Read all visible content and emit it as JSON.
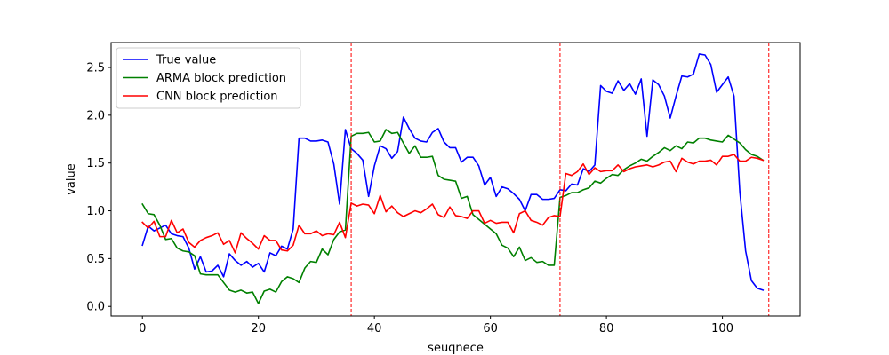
{
  "chart_data": {
    "type": "line",
    "title": "",
    "xlabel": "seuqnece",
    "ylabel": "value",
    "xlim": [
      -5.4,
      113.4
    ],
    "ylim": [
      -0.1,
      2.76
    ],
    "x_ticks": [
      0,
      20,
      40,
      60,
      80,
      100
    ],
    "y_ticks": [
      0.0,
      0.5,
      1.0,
      1.5,
      2.0,
      2.5
    ],
    "x_tick_labels": [
      "0",
      "20",
      "40",
      "60",
      "80",
      "100"
    ],
    "y_tick_labels": [
      "0.0",
      "0.5",
      "1.0",
      "1.5",
      "2.0",
      "2.5"
    ],
    "grid": false,
    "legend_position": "upper-left",
    "vlines": {
      "x": [
        36,
        72,
        108
      ],
      "color": "#ff0000",
      "style": "dashed"
    },
    "x": [
      0,
      1,
      2,
      3,
      4,
      5,
      6,
      7,
      8,
      9,
      10,
      11,
      12,
      13,
      14,
      15,
      16,
      17,
      18,
      19,
      20,
      21,
      22,
      23,
      24,
      25,
      26,
      27,
      28,
      29,
      30,
      31,
      32,
      33,
      34,
      35,
      36,
      37,
      38,
      39,
      40,
      41,
      42,
      43,
      44,
      45,
      46,
      47,
      48,
      49,
      50,
      51,
      52,
      53,
      54,
      55,
      56,
      57,
      58,
      59,
      60,
      61,
      62,
      63,
      64,
      65,
      66,
      67,
      68,
      69,
      70,
      71,
      72,
      73,
      74,
      75,
      76,
      77,
      78,
      79,
      80,
      81,
      82,
      83,
      84,
      85,
      86,
      87,
      88,
      89,
      90,
      91,
      92,
      93,
      94,
      95,
      96,
      97,
      98,
      99,
      100,
      101,
      102,
      103,
      104,
      105,
      106,
      107,
      108
    ],
    "series": [
      {
        "name": "True value",
        "color": "#0000ff",
        "values": [
          0.64,
          0.84,
          0.79,
          0.82,
          0.85,
          0.76,
          0.74,
          0.73,
          0.61,
          0.39,
          0.52,
          0.36,
          0.37,
          0.43,
          0.31,
          0.55,
          0.48,
          0.43,
          0.47,
          0.41,
          0.45,
          0.36,
          0.56,
          0.53,
          0.63,
          0.6,
          0.81,
          1.76,
          1.76,
          1.73,
          1.73,
          1.74,
          1.72,
          1.49,
          1.07,
          1.85,
          1.65,
          1.6,
          1.53,
          1.15,
          1.47,
          1.68,
          1.65,
          1.55,
          1.62,
          1.98,
          1.86,
          1.76,
          1.73,
          1.72,
          1.82,
          1.86,
          1.72,
          1.66,
          1.66,
          1.51,
          1.56,
          1.56,
          1.47,
          1.27,
          1.35,
          1.15,
          1.25,
          1.23,
          1.18,
          1.12,
          1.0,
          1.17,
          1.17,
          1.12,
          1.12,
          1.13,
          1.22,
          1.21,
          1.28,
          1.27,
          1.44,
          1.41,
          1.48,
          2.31,
          2.25,
          2.23,
          2.36,
          2.26,
          2.33,
          2.22,
          2.38,
          1.78,
          2.37,
          2.32,
          2.2,
          1.97,
          2.2,
          2.41,
          2.4,
          2.43,
          2.64,
          2.63,
          2.53,
          2.24,
          2.32,
          2.4,
          2.2,
          1.2,
          0.58,
          0.27,
          0.19,
          0.17,
          null
        ]
      },
      {
        "name": "ARMA block prediction",
        "color": "#008000",
        "values": [
          1.07,
          0.97,
          0.96,
          0.85,
          0.7,
          0.71,
          0.61,
          0.58,
          0.57,
          0.53,
          0.34,
          0.33,
          0.33,
          0.33,
          0.25,
          0.17,
          0.15,
          0.17,
          0.14,
          0.15,
          0.03,
          0.16,
          0.18,
          0.15,
          0.26,
          0.31,
          0.29,
          0.25,
          0.4,
          0.47,
          0.46,
          0.6,
          0.54,
          0.7,
          0.78,
          0.8,
          1.78,
          1.81,
          1.81,
          1.82,
          1.72,
          1.73,
          1.85,
          1.81,
          1.82,
          1.71,
          1.6,
          1.68,
          1.56,
          1.56,
          1.57,
          1.37,
          1.33,
          1.32,
          1.31,
          1.13,
          1.15,
          0.96,
          0.91,
          0.86,
          0.81,
          0.76,
          0.64,
          0.61,
          0.52,
          0.62,
          0.48,
          0.51,
          0.46,
          0.47,
          0.43,
          0.43,
          1.14,
          1.16,
          1.19,
          1.19,
          1.22,
          1.24,
          1.31,
          1.29,
          1.34,
          1.38,
          1.37,
          1.43,
          1.47,
          1.5,
          1.54,
          1.52,
          1.57,
          1.61,
          1.66,
          1.63,
          1.68,
          1.65,
          1.72,
          1.71,
          1.76,
          1.76,
          1.74,
          1.73,
          1.72,
          1.79,
          1.75,
          1.71,
          1.64,
          1.59,
          1.57,
          1.53,
          null
        ]
      },
      {
        "name": "CNN block prediction",
        "color": "#ff0000",
        "values": [
          0.88,
          0.82,
          0.89,
          0.73,
          0.73,
          0.9,
          0.77,
          0.81,
          0.67,
          0.62,
          0.69,
          0.72,
          0.74,
          0.77,
          0.65,
          0.69,
          0.56,
          0.77,
          0.71,
          0.66,
          0.6,
          0.74,
          0.69,
          0.69,
          0.59,
          0.58,
          0.64,
          0.85,
          0.76,
          0.76,
          0.79,
          0.74,
          0.76,
          0.75,
          0.88,
          0.72,
          1.08,
          1.05,
          1.07,
          1.06,
          0.97,
          1.16,
          0.99,
          1.05,
          0.98,
          0.94,
          0.97,
          1.0,
          0.98,
          1.02,
          1.07,
          0.96,
          0.93,
          1.04,
          0.95,
          0.94,
          0.92,
          1.0,
          1.0,
          0.87,
          0.9,
          0.87,
          0.88,
          0.88,
          0.77,
          0.97,
          1.0,
          0.9,
          0.88,
          0.85,
          0.93,
          0.95,
          0.94,
          1.39,
          1.37,
          1.41,
          1.49,
          1.38,
          1.45,
          1.41,
          1.42,
          1.42,
          1.48,
          1.41,
          1.44,
          1.46,
          1.47,
          1.48,
          1.46,
          1.48,
          1.51,
          1.52,
          1.41,
          1.55,
          1.51,
          1.49,
          1.52,
          1.52,
          1.53,
          1.48,
          1.57,
          1.57,
          1.59,
          1.52,
          1.52,
          1.56,
          1.55,
          1.53,
          null
        ]
      }
    ]
  }
}
